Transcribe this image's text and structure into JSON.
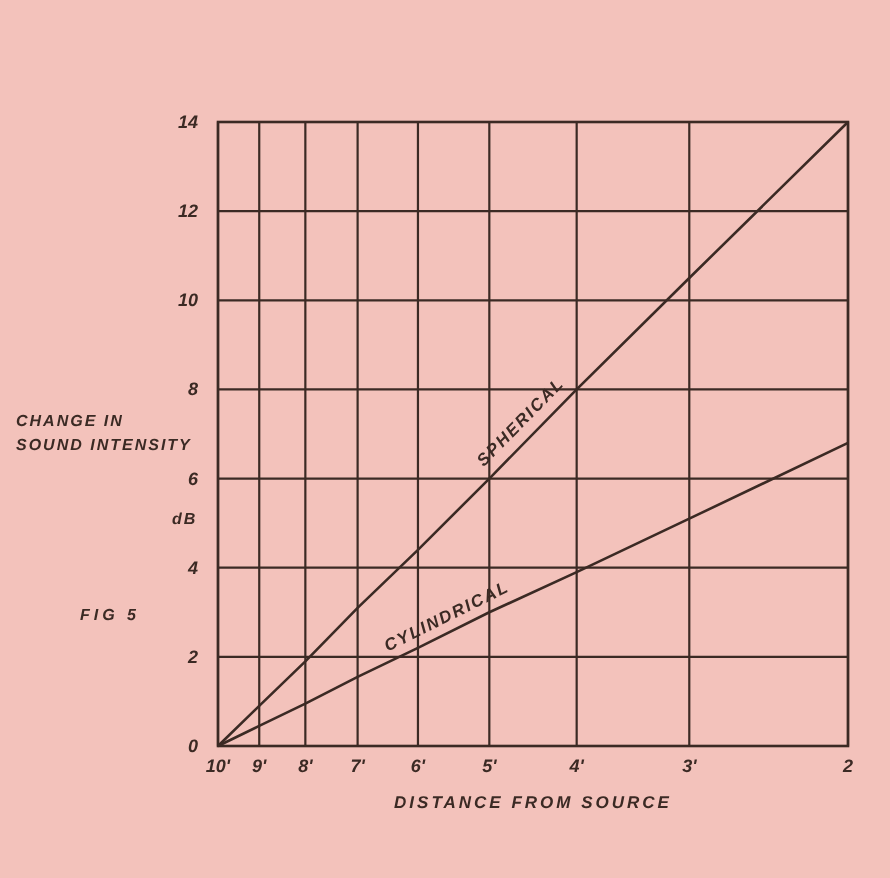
{
  "chart_data": {
    "type": "line",
    "xlabel": "DISTANCE FROM SOURCE",
    "ylabel": "CHANGE IN\nSOUND INTENSITY\ndB",
    "annotations": [
      "FIG 5"
    ],
    "x": [
      10,
      9,
      8,
      7,
      6,
      5,
      4,
      3,
      2
    ],
    "log": "x",
    "xlim": [
      10,
      2
    ],
    "xticks": [
      {
        "value": 10,
        "label": "10'"
      },
      {
        "value": 9,
        "label": "9'"
      },
      {
        "value": 8,
        "label": "8'"
      },
      {
        "value": 7,
        "label": "7'"
      },
      {
        "value": 6,
        "label": "6'"
      },
      {
        "value": 5,
        "label": "5'"
      },
      {
        "value": 4,
        "label": "4'"
      },
      {
        "value": 3,
        "label": "3'"
      },
      {
        "value": 2,
        "label": "2"
      }
    ],
    "ylim": [
      0,
      14
    ],
    "yticks": [
      0,
      2,
      4,
      6,
      8,
      10,
      12,
      14
    ],
    "grid": true,
    "marker": "none",
    "line_style": "solid",
    "series": [
      {
        "name": "SPHERICAL",
        "color": "#3b2a24",
        "values": [
          0,
          0.9,
          1.9,
          3.1,
          4.4,
          6.0,
          8.0,
          10.5,
          14
        ]
      },
      {
        "name": "CYLINDRICAL",
        "color": "#3b2a24",
        "values": [
          0,
          0.45,
          0.95,
          1.55,
          2.2,
          3.0,
          3.9,
          5.1,
          6.8
        ]
      }
    ]
  }
}
